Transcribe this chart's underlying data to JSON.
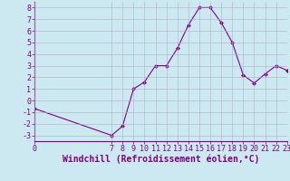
{
  "x": [
    0,
    7,
    8,
    9,
    10,
    11,
    12,
    13,
    14,
    15,
    16,
    17,
    18,
    19,
    20,
    21,
    22,
    23
  ],
  "y": [
    -0.7,
    -3.0,
    -2.2,
    1.0,
    1.6,
    3.0,
    3.0,
    4.5,
    6.5,
    8.0,
    8.0,
    6.7,
    5.0,
    2.2,
    1.5,
    2.3,
    3.0,
    2.6
  ],
  "line_color": "#800080",
  "marker": "D",
  "marker_size": 2,
  "background_color": "#cce8f0",
  "grid_color": "#b0b0c8",
  "xlabel": "Windchill (Refroidissement éolien,°C)",
  "xlim": [
    0,
    23
  ],
  "ylim": [
    -3.5,
    8.5
  ],
  "yticks": [
    -3,
    -2,
    -1,
    0,
    1,
    2,
    3,
    4,
    5,
    6,
    7,
    8
  ],
  "xticks": [
    0,
    7,
    8,
    9,
    10,
    11,
    12,
    13,
    14,
    15,
    16,
    17,
    18,
    19,
    20,
    21,
    22,
    23
  ],
  "font_color": "#800080",
  "tick_fontsize": 6,
  "xlabel_fontsize": 7,
  "linewidth": 0.8
}
